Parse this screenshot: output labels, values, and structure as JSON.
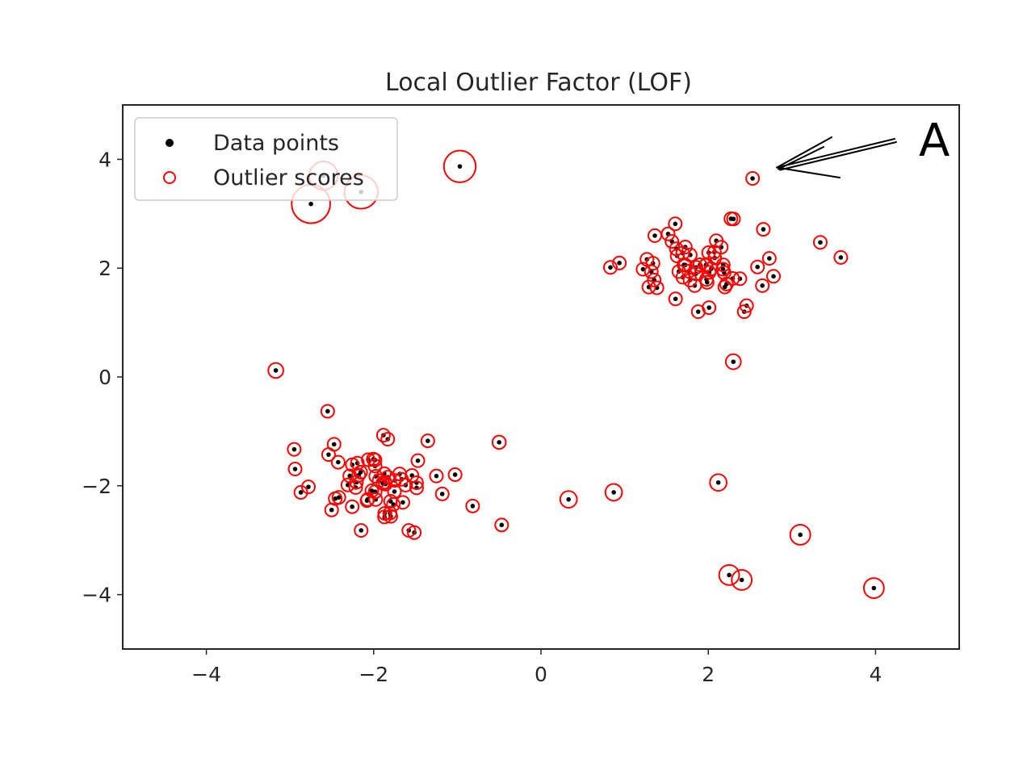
{
  "chart_data": {
    "type": "scatter",
    "title": "Local Outlier Factor (LOF)",
    "xlabel": "",
    "ylabel": "",
    "xlim": [
      -5,
      5
    ],
    "ylim": [
      -5,
      5
    ],
    "xticks": [
      -4,
      -2,
      0,
      2,
      4
    ],
    "yticks": [
      -4,
      -2,
      0,
      2,
      4
    ],
    "xtick_labels": [
      "−4",
      "−2",
      "0",
      "2",
      "4"
    ],
    "ytick_labels": [
      "−4",
      "−2",
      "0",
      "2",
      "4"
    ],
    "grid": false,
    "legend_position": "upper-left",
    "colors": {
      "points": "#000000",
      "scores": "#ff0000",
      "axes": "#262626"
    },
    "series": [
      {
        "name": "Data points",
        "marker": "dot"
      },
      {
        "name": "Outlier scores",
        "marker": "open-circle"
      }
    ],
    "outliers": [
      {
        "x": -2.75,
        "y": 3.18,
        "score": 0.23
      },
      {
        "x": -2.15,
        "y": 3.4,
        "score": 0.2
      },
      {
        "x": -2.6,
        "y": 3.7,
        "score": 0.17
      },
      {
        "x": -0.97,
        "y": 3.87,
        "score": 0.19
      },
      {
        "x": 2.53,
        "y": 3.65,
        "score": 0.07
      },
      {
        "x": 2.3,
        "y": 0.28,
        "score": 0.09
      },
      {
        "x": -3.17,
        "y": 0.12,
        "score": 0.09
      },
      {
        "x": -2.55,
        "y": -0.63,
        "score": 0.06
      },
      {
        "x": -0.5,
        "y": -1.2,
        "score": 0.08
      },
      {
        "x": 2.12,
        "y": -1.94,
        "score": 0.1
      },
      {
        "x": 0.33,
        "y": -2.25,
        "score": 0.1
      },
      {
        "x": 0.87,
        "y": -2.12,
        "score": 0.1
      },
      {
        "x": -0.47,
        "y": -2.72,
        "score": 0.07
      },
      {
        "x": 3.1,
        "y": -2.9,
        "score": 0.12
      },
      {
        "x": 2.25,
        "y": -3.64,
        "score": 0.12
      },
      {
        "x": 2.4,
        "y": -3.73,
        "score": 0.12
      },
      {
        "x": 3.98,
        "y": -3.88,
        "score": 0.12
      },
      {
        "x": -2.95,
        "y": -1.33,
        "score": 0.04
      },
      {
        "x": -2.78,
        "y": -2.02,
        "score": 0.04
      },
      {
        "x": 1.22,
        "y": 1.98,
        "score": 0.04
      },
      {
        "x": 2.78,
        "y": 1.85,
        "score": 0.04
      },
      {
        "x": 2.73,
        "y": 2.18,
        "score": 0.04
      },
      {
        "x": -1.58,
        "y": -2.82,
        "score": 0.04
      },
      {
        "x": -2.15,
        "y": -2.82,
        "score": 0.04
      },
      {
        "x": -1.25,
        "y": -1.82,
        "score": 0.04
      },
      {
        "x": -1.18,
        "y": -2.15,
        "score": 0.04
      },
      {
        "x": 2.43,
        "y": 1.2,
        "score": 0.04
      },
      {
        "x": 1.88,
        "y": 1.2,
        "score": 0.04
      }
    ],
    "clusters": [
      {
        "center": [
          1.95,
          2.05
        ],
        "spread_x": 0.42,
        "spread_y": 0.38,
        "count": 55,
        "score_min": 0.03,
        "score_max": 0.05
      },
      {
        "center": [
          -1.95,
          -1.95
        ],
        "spread_x": 0.38,
        "spread_y": 0.38,
        "count": 55,
        "score_min": 0.03,
        "score_max": 0.05
      }
    ]
  },
  "annotation": {
    "label": "A",
    "target": [
      2.82,
      3.85
    ]
  }
}
